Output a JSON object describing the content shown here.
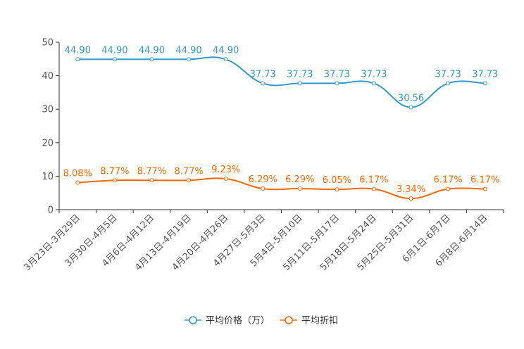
{
  "chart_data": {
    "type": "line",
    "categories": [
      "3月23日-3月29日",
      "3月30日-4月5日",
      "4月6日-4月12日",
      "4月13日-4月19日",
      "4月20日-4月26日",
      "4月27日-5月3日",
      "5月4日-5月10日",
      "5月11日-5月17日",
      "5月18日-5月24日",
      "5月25日-5月31日",
      "6月1日-6月7日",
      "6月8日-6月14日"
    ],
    "series": [
      {
        "name": "平均价格（万）",
        "color": "#3399cc",
        "values": [
          44.9,
          44.9,
          44.9,
          44.9,
          44.9,
          37.73,
          37.73,
          37.73,
          37.73,
          30.56,
          37.73,
          37.73
        ],
        "labels": [
          "44.90",
          "44.90",
          "44.90",
          "44.90",
          "44.90",
          "37.73",
          "37.73",
          "37.73",
          "37.73",
          "30.56",
          "37.73",
          "37.73"
        ]
      },
      {
        "name": "平均折扣",
        "color": "#ff6600",
        "values": [
          8.08,
          8.77,
          8.77,
          8.77,
          9.23,
          6.29,
          6.29,
          6.05,
          6.17,
          3.34,
          6.17,
          6.17
        ],
        "labels": [
          "8.08%",
          "8.77%",
          "8.77%",
          "8.77%",
          "9.23%",
          "6.29%",
          "6.29%",
          "6.05%",
          "6.17%",
          "3.34%",
          "6.17%",
          "6.17%"
        ]
      }
    ],
    "yticks": [
      "0",
      "10",
      "20",
      "30",
      "40",
      "50"
    ],
    "ylim": [
      0,
      50
    ],
    "legend_position": "bottom-center",
    "grid": false
  }
}
